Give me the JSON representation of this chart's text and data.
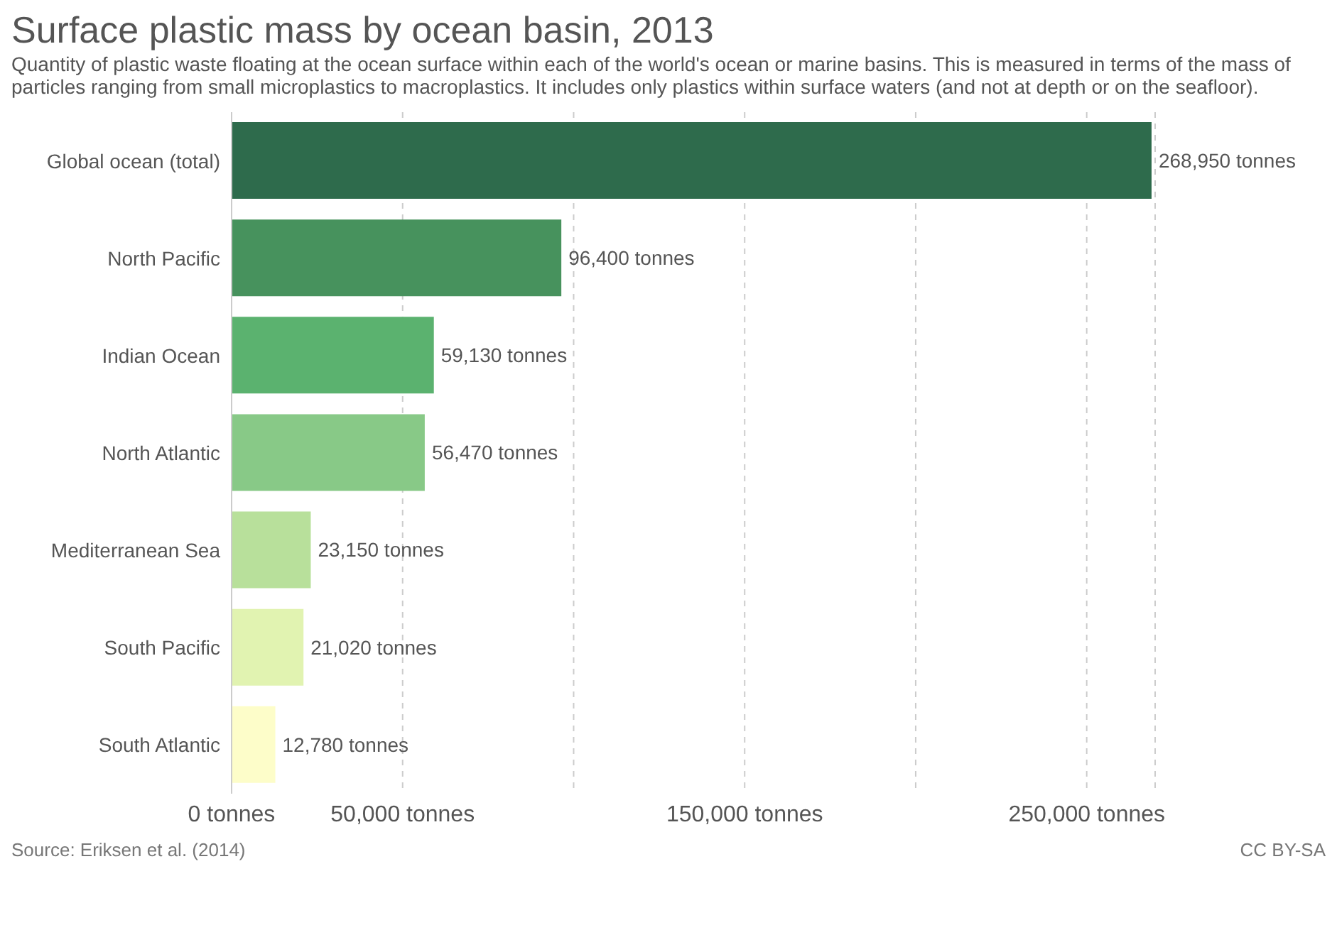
{
  "chart_data": {
    "type": "bar",
    "orientation": "horizontal",
    "title": "Surface plastic mass by ocean basin, 2013",
    "subtitle": "Quantity of plastic waste floating at the ocean surface within each of the world's ocean or marine basins. This is measured in terms of the mass of particles ranging from small microplastics to macroplastics. It includes only plastics within surface waters (and not at depth or on the seafloor).",
    "categories": [
      "Global ocean (total)",
      "North Pacific",
      "Indian Ocean",
      "North Atlantic",
      "Mediterranean Sea",
      "South Pacific",
      "South Atlantic"
    ],
    "values": [
      268950,
      96400,
      59130,
      56470,
      23150,
      21020,
      12780
    ],
    "value_labels": [
      "268,950 tonnes",
      "96,400 tonnes",
      "59,130 tonnes",
      "56,470 tonnes",
      "23,150 tonnes",
      "21,020 tonnes",
      "12,780 tonnes"
    ],
    "colors": [
      "#2e6b4c",
      "#47925d",
      "#5bb26f",
      "#88c987",
      "#b8e09b",
      "#e1f3b1",
      "#fdfdc9"
    ],
    "xlim": [
      0,
      270000
    ],
    "xticks": [
      {
        "value": 0,
        "label": "0 tonnes"
      },
      {
        "value": 50000,
        "label": "50,000 tonnes"
      },
      {
        "value": 100000,
        "label": null
      },
      {
        "value": 150000,
        "label": "150,000 tonnes"
      },
      {
        "value": 200000,
        "label": null
      },
      {
        "value": 250000,
        "label": "250,000 tonnes"
      }
    ],
    "grid": "x",
    "annotations": [
      "Source: Eriksen et al. (2014)",
      "CC BY-SA"
    ]
  }
}
